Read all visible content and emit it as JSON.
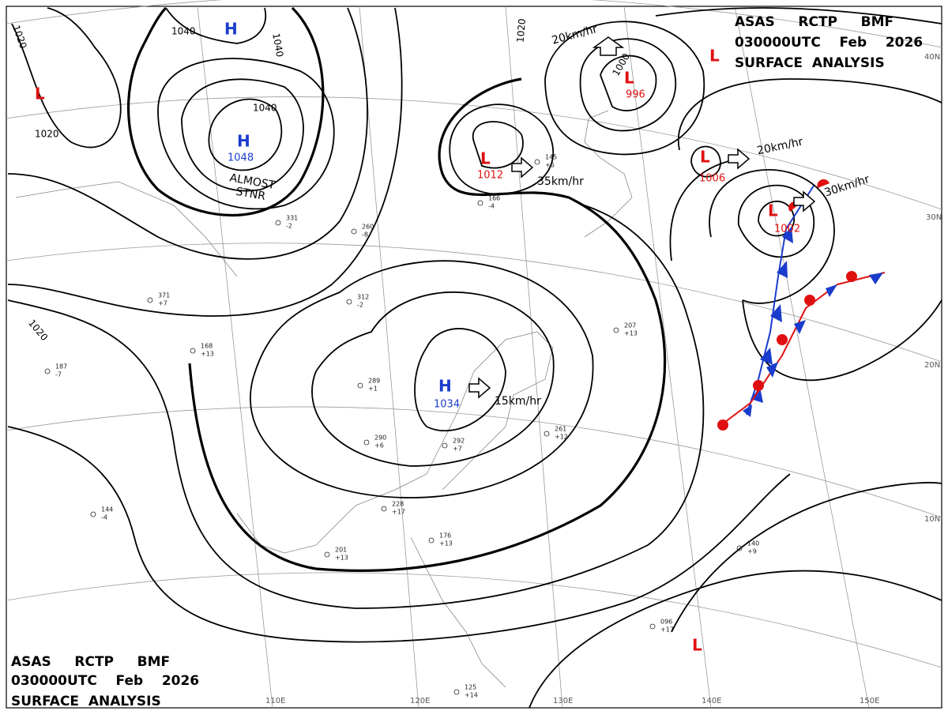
{
  "header_top": [
    "ASAS     RCTP     BMF",
    "030000UTC    Feb    2026",
    "SURFACE  ANALYSIS"
  ],
  "header_bottom": [
    "ASAS     RCTP     BMF",
    "030000UTC    Feb    2026",
    "SURFACE  ANALYSIS"
  ],
  "centers": [
    {
      "symbol": "H",
      "pressure": "1048"
    },
    {
      "symbol": "H",
      "pressure": "1034"
    },
    {
      "symbol": "L",
      "pressure": "1012"
    },
    {
      "symbol": "L",
      "pressure": "996"
    },
    {
      "symbol": "L",
      "pressure": "1006"
    },
    {
      "symbol": "L",
      "pressure": "1002"
    },
    {
      "symbol": "H"
    },
    {
      "symbol": "L"
    },
    {
      "symbol": "L"
    },
    {
      "symbol": "L"
    }
  ],
  "isobar_labels": [
    "1020",
    "1040",
    "1040",
    "1020",
    "1040",
    "1020",
    "1000",
    "1020"
  ],
  "motions": [
    "20km/hr",
    "35km/hr",
    "20km/hr",
    "30km/hr",
    "15km/hr"
  ],
  "annotation": [
    "ALMOST",
    "STNR"
  ],
  "latitudes": [
    "40N",
    "30N",
    "20N",
    "10N"
  ],
  "longitudes": [
    "110E",
    "120E",
    "130E",
    "140E",
    "150E"
  ],
  "stations": [
    {
      "p": "371",
      "t": "+7"
    },
    {
      "p": "331",
      "t": "-2"
    },
    {
      "p": "260",
      "t": "-8"
    },
    {
      "p": "312",
      "t": "-2"
    },
    {
      "p": "289",
      "t": "+1"
    },
    {
      "p": "290",
      "t": "+6"
    },
    {
      "p": "292",
      "t": "+7"
    },
    {
      "p": "228",
      "t": "+17"
    },
    {
      "p": "176",
      "t": "+13"
    },
    {
      "p": "201",
      "t": "+13"
    },
    {
      "p": "166",
      "t": "-4"
    },
    {
      "p": "145",
      "t": "+6"
    },
    {
      "p": "261",
      "t": "+12"
    },
    {
      "p": "207",
      "t": "+13"
    },
    {
      "p": "140",
      "t": "+9"
    },
    {
      "p": "096",
      "t": "+17"
    },
    {
      "p": "125",
      "t": "+14"
    },
    {
      "p": "168",
      "t": "+13"
    },
    {
      "p": "187",
      "t": "-7"
    },
    {
      "p": "144",
      "t": "-4"
    }
  ]
}
